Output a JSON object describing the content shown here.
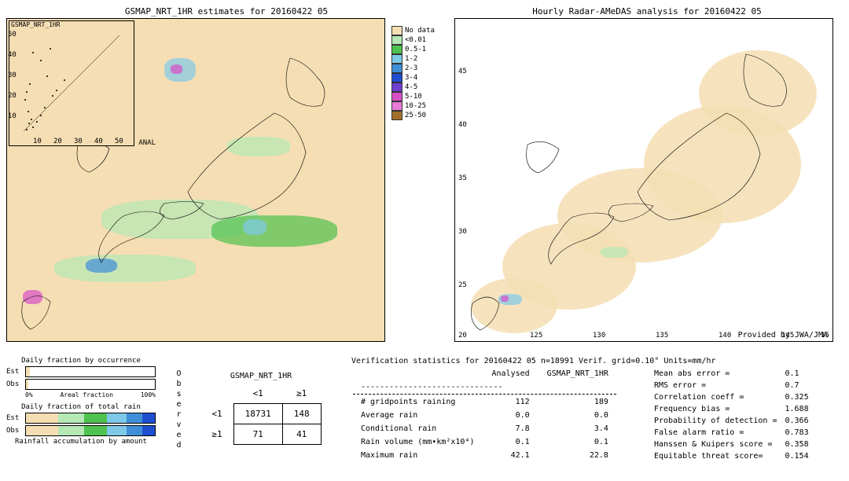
{
  "left_map": {
    "title": "GSMAP_NRT_1HR estimates for 20160422 05",
    "inset_label": "GSMAP_NRT_1HR",
    "inset_anal": "ANAL",
    "inset_ticks_y": [
      "50",
      "40",
      "30",
      "20",
      "10"
    ],
    "inset_ticks_x": [
      "10",
      "20",
      "30",
      "40",
      "50"
    ],
    "background_color": "#f5deb3",
    "extent": {
      "lon_min": 118,
      "lon_max": 150,
      "lat_min": 20,
      "lat_max": 50
    }
  },
  "right_map": {
    "title": "Hourly Radar-AMeDAS analysis for 20160422 05",
    "provided": "Provided by JWA/JMA",
    "background_color": "#ffffff",
    "x_ticks": [
      "125",
      "130",
      "135",
      "140",
      "145"
    ],
    "y_ticks": [
      "45",
      "40",
      "35",
      "30",
      "25"
    ],
    "left_lat": "20",
    "right_lon": "15"
  },
  "legend": {
    "title": "",
    "items": [
      {
        "label": "No data",
        "color": "#f5deb3"
      },
      {
        "label": "<0.01",
        "color": "#b5e8b5"
      },
      {
        "label": "0.5-1",
        "color": "#4fc24f"
      },
      {
        "label": "1-2",
        "color": "#7fc9e8"
      },
      {
        "label": "2-3",
        "color": "#3f8fd8"
      },
      {
        "label": "3-4",
        "color": "#1f4fd0"
      },
      {
        "label": "4-5",
        "color": "#6f3fd0"
      },
      {
        "label": "5-10",
        "color": "#d84fc8"
      },
      {
        "label": "10-25",
        "color": "#e879d8"
      },
      {
        "label": "25-50",
        "color": "#a0702a"
      }
    ]
  },
  "fractions": {
    "occ_title": "Daily fraction by occurrence",
    "est_label": "Est",
    "obs_label": "Obs",
    "axis_0": "0%",
    "axis_mid": "Areal fraction",
    "axis_100": "100%",
    "total_title": "Daily fraction of total rain",
    "accum_title": "Rainfall accumulation by amount",
    "est_occ_fill": 3,
    "est_occ_color": "#f5deb3",
    "obs_occ_fill": 2,
    "obs_occ_color": "#f5deb3",
    "accum_colors": [
      "#f5deb3",
      "#b5e8b5",
      "#4fc24f",
      "#7fc9e8",
      "#3f8fd8",
      "#1f4fd0"
    ],
    "accum_widths": [
      25,
      20,
      18,
      15,
      12,
      10
    ]
  },
  "contingency": {
    "title": "GSMAP_NRT_1HR",
    "col1": "<1",
    "col2": "≥1",
    "row1": "<1",
    "row2": "≥1",
    "obs_label": "Observed",
    "cells": [
      [
        "18731",
        "148"
      ],
      [
        "71",
        "41"
      ]
    ]
  },
  "verif": {
    "title_prefix": "Verification statistics for 20160422 05   n=18991   Verif. grid=0.10°   Units=mm/hr",
    "hdr_analysed": "Analysed",
    "hdr_est": "GSMAP_NRT_1HR",
    "dash": "------------------------------",
    "rows": [
      {
        "label": "# gridpoints raining",
        "a": "112",
        "e": "189"
      },
      {
        "label": "Average rain",
        "a": "0.0",
        "e": "0.0"
      },
      {
        "label": "Conditional rain",
        "a": "7.8",
        "e": "3.4"
      },
      {
        "label": "Rain volume (mm•km²x10⁴)",
        "a": "0.1",
        "e": "0.1"
      },
      {
        "label": "Maximum rain",
        "a": "42.1",
        "e": "22.8"
      }
    ],
    "stats": [
      {
        "label": "Mean abs error =",
        "v": "0.1"
      },
      {
        "label": "RMS error =",
        "v": "0.7"
      },
      {
        "label": "Correlation coeff =",
        "v": "0.325"
      },
      {
        "label": "Frequency bias =",
        "v": "1.688"
      },
      {
        "label": "Probability of detection =",
        "v": "0.366"
      },
      {
        "label": "False alarm ratio =",
        "v": "0.783"
      },
      {
        "label": "Hanssen & Kuipers score =",
        "v": "0.358"
      },
      {
        "label": "Equitable threat score=",
        "v": "0.154"
      }
    ]
  }
}
